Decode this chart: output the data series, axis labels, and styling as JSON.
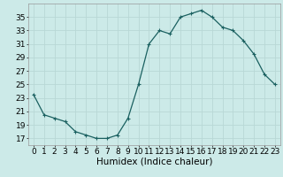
{
  "x": [
    0,
    1,
    2,
    3,
    4,
    5,
    6,
    7,
    8,
    9,
    10,
    11,
    12,
    13,
    14,
    15,
    16,
    17,
    18,
    19,
    20,
    21,
    22,
    23
  ],
  "y": [
    23.5,
    20.5,
    20.0,
    19.5,
    18.0,
    17.5,
    17.0,
    17.0,
    17.5,
    20.0,
    25.0,
    31.0,
    33.0,
    32.5,
    35.0,
    35.5,
    36.0,
    35.0,
    33.5,
    33.0,
    31.5,
    29.5,
    26.5,
    25.0
  ],
  "line_color": "#1a6060",
  "marker": "+",
  "marker_size": 3,
  "bg_color": "#cceae8",
  "grid_color": "#b8d8d6",
  "xlabel": "Humidex (Indice chaleur)",
  "ylim": [
    16,
    37
  ],
  "xlim": [
    -0.5,
    23.5
  ],
  "yticks": [
    17,
    19,
    21,
    23,
    25,
    27,
    29,
    31,
    33,
    35
  ],
  "xticks": [
    0,
    1,
    2,
    3,
    4,
    5,
    6,
    7,
    8,
    9,
    10,
    11,
    12,
    13,
    14,
    15,
    16,
    17,
    18,
    19,
    20,
    21,
    22,
    23
  ],
  "xlabel_fontsize": 7.5,
  "tick_fontsize": 6.5
}
